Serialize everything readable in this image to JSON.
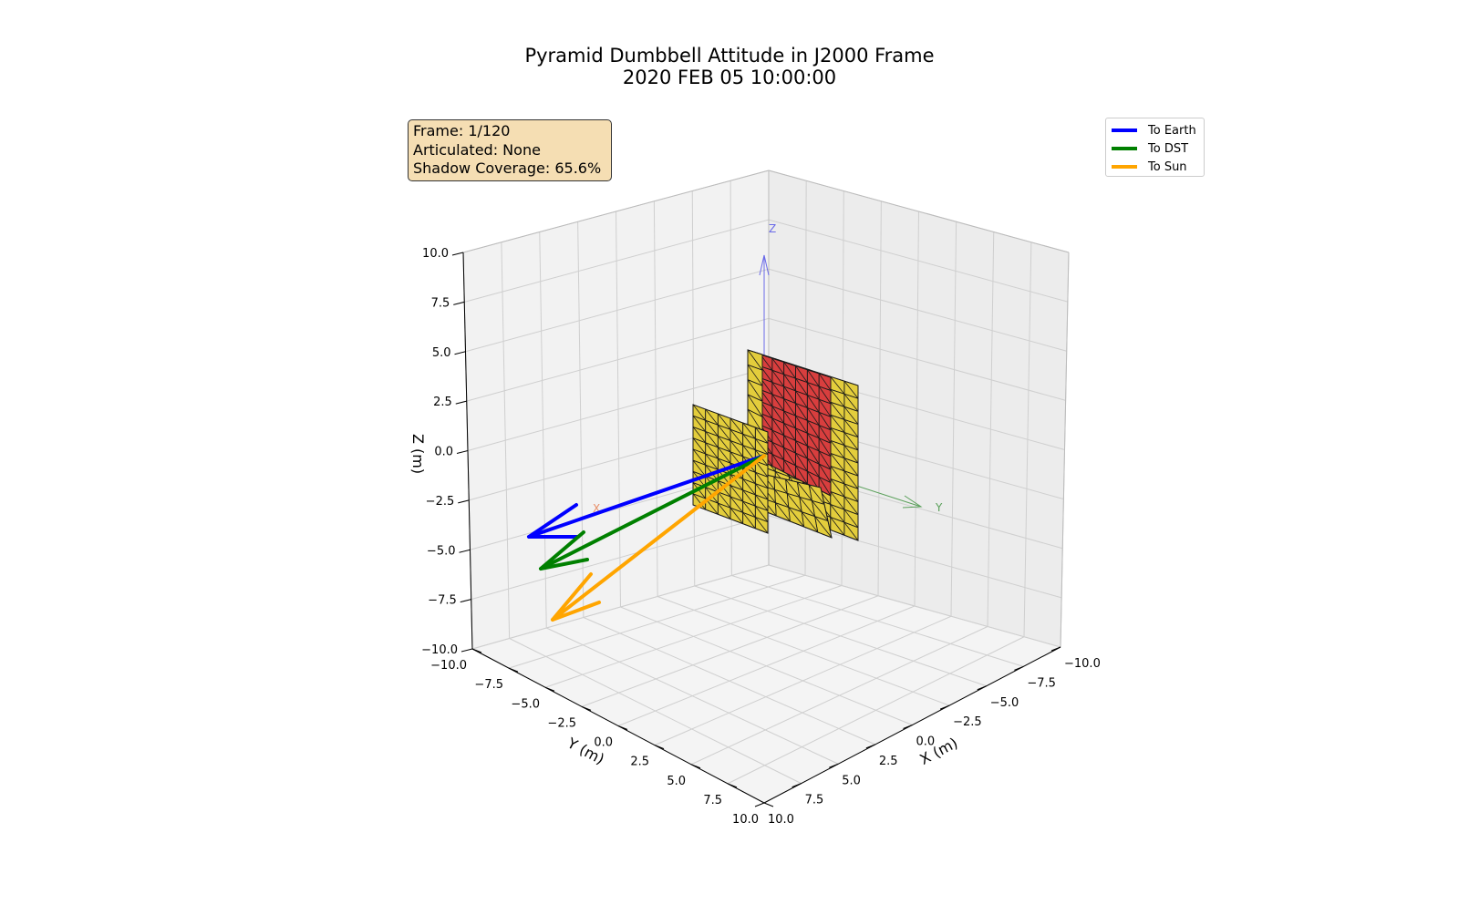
{
  "chart_data": {
    "type": "3d-vector-plot",
    "title": "Pyramid Dumbbell Attitude in J2000 Frame",
    "subtitle": "2020 FEB 05 10:00:00",
    "xlabel": "X (m)",
    "ylabel": "Y (m)",
    "zlabel": "Z (m)",
    "xlim": [
      -10,
      10
    ],
    "ylim": [
      -10,
      10
    ],
    "zlim": [
      -10,
      10
    ],
    "x_ticks": [
      "−10.0",
      "−7.5",
      "−5.0",
      "−2.5",
      "0.0",
      "2.5",
      "5.0",
      "7.5",
      "10.0"
    ],
    "y_ticks": [
      "−10.0",
      "−7.5",
      "−5.0",
      "−2.5",
      "0.0",
      "2.5",
      "5.0",
      "7.5",
      "10.0"
    ],
    "z_ticks": [
      "−10.0",
      "−7.5",
      "−5.0",
      "−2.5",
      "0.0",
      "2.5",
      "5.0",
      "7.5",
      "10.0"
    ],
    "grid": true,
    "body_axes": [
      {
        "label": "Z",
        "color": "#6a6ae8"
      },
      {
        "label": "Y",
        "color": "#5aa05a"
      },
      {
        "label": "X",
        "color": "#e8906a"
      }
    ],
    "vectors": [
      {
        "name": "To Earth",
        "color": "#0000ff"
      },
      {
        "name": "To DST",
        "color": "#008000"
      },
      {
        "name": "To Sun",
        "color": "#ffa500"
      }
    ],
    "legend_position": "top-right",
    "panel_colors": {
      "panel": "#e3cd3c",
      "shadowed": "#d83e3e",
      "edge": "#1a1a1a"
    }
  },
  "info_box": {
    "frame": "Frame: 1/120",
    "articulated": "Articulated: None",
    "shadow_coverage": "Shadow Coverage: 65.6%"
  }
}
